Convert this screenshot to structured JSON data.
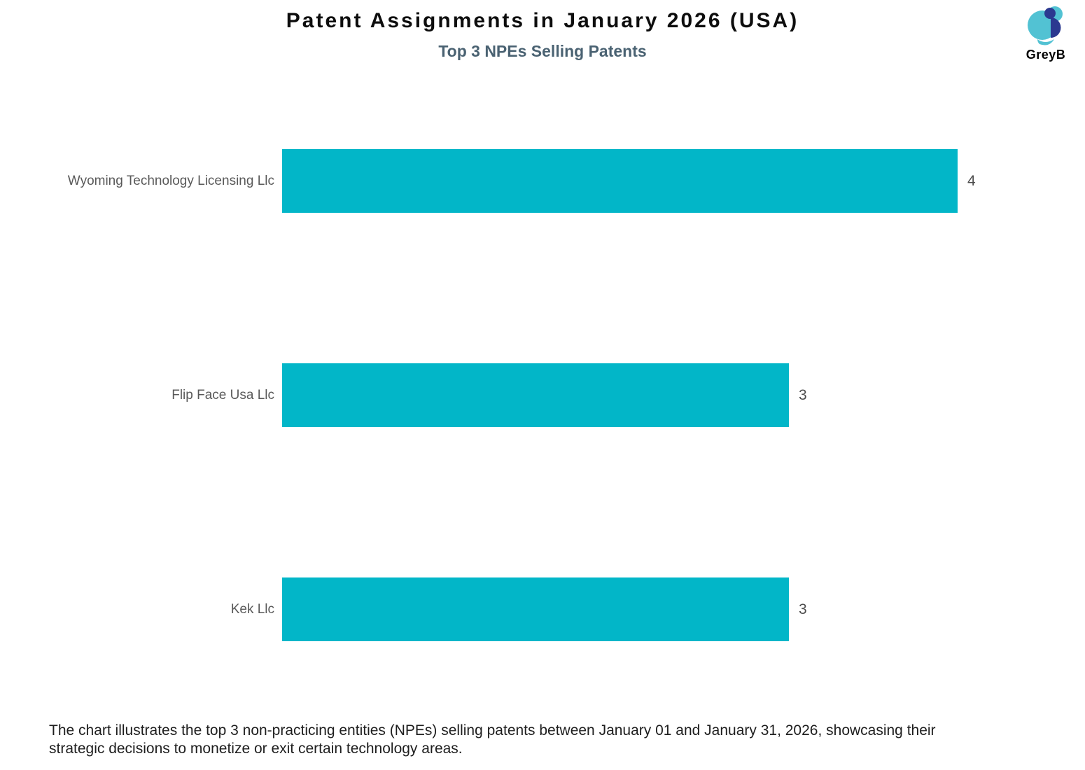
{
  "header": {
    "title": "Patent Assignments in January 2026 (USA)",
    "subtitle": "Top 3 NPEs Selling Patents"
  },
  "logo": {
    "text": "GreyB",
    "teal": "#52C2D3",
    "navy": "#2B3990",
    "text_color": "#3BAECB"
  },
  "chart_data": {
    "type": "bar",
    "orientation": "horizontal",
    "title": "Patent Assignments in January 2026 (USA)",
    "subtitle": "Top 3 NPEs Selling Patents",
    "categories": [
      "Wyoming Technology Licensing Llc",
      "Flip Face Usa Llc",
      "Kek Llc"
    ],
    "values": [
      4,
      3,
      3
    ],
    "value_labels": [
      "4",
      "3",
      "3"
    ],
    "bar_color": "#02B6C8",
    "label_color": "#595959",
    "value_label_color": "#4d4d4d",
    "xlim": [
      0,
      4
    ],
    "grid": false,
    "legend": false
  },
  "caption": {
    "full": "The chart illustrates the top 3 non-practicing entities (NPEs) selling patents between January 01 and January 31, 2026, showcasing their strategic decisions to monetize or exit certain technology areas.",
    "lines": [
      "The chart illustrates the top 3 non-practicing entities (NPEs) selling patents between January 01 and January 31, 2026, showcasing their",
      "strategic decisions to monetize or exit certain technology areas."
    ]
  }
}
